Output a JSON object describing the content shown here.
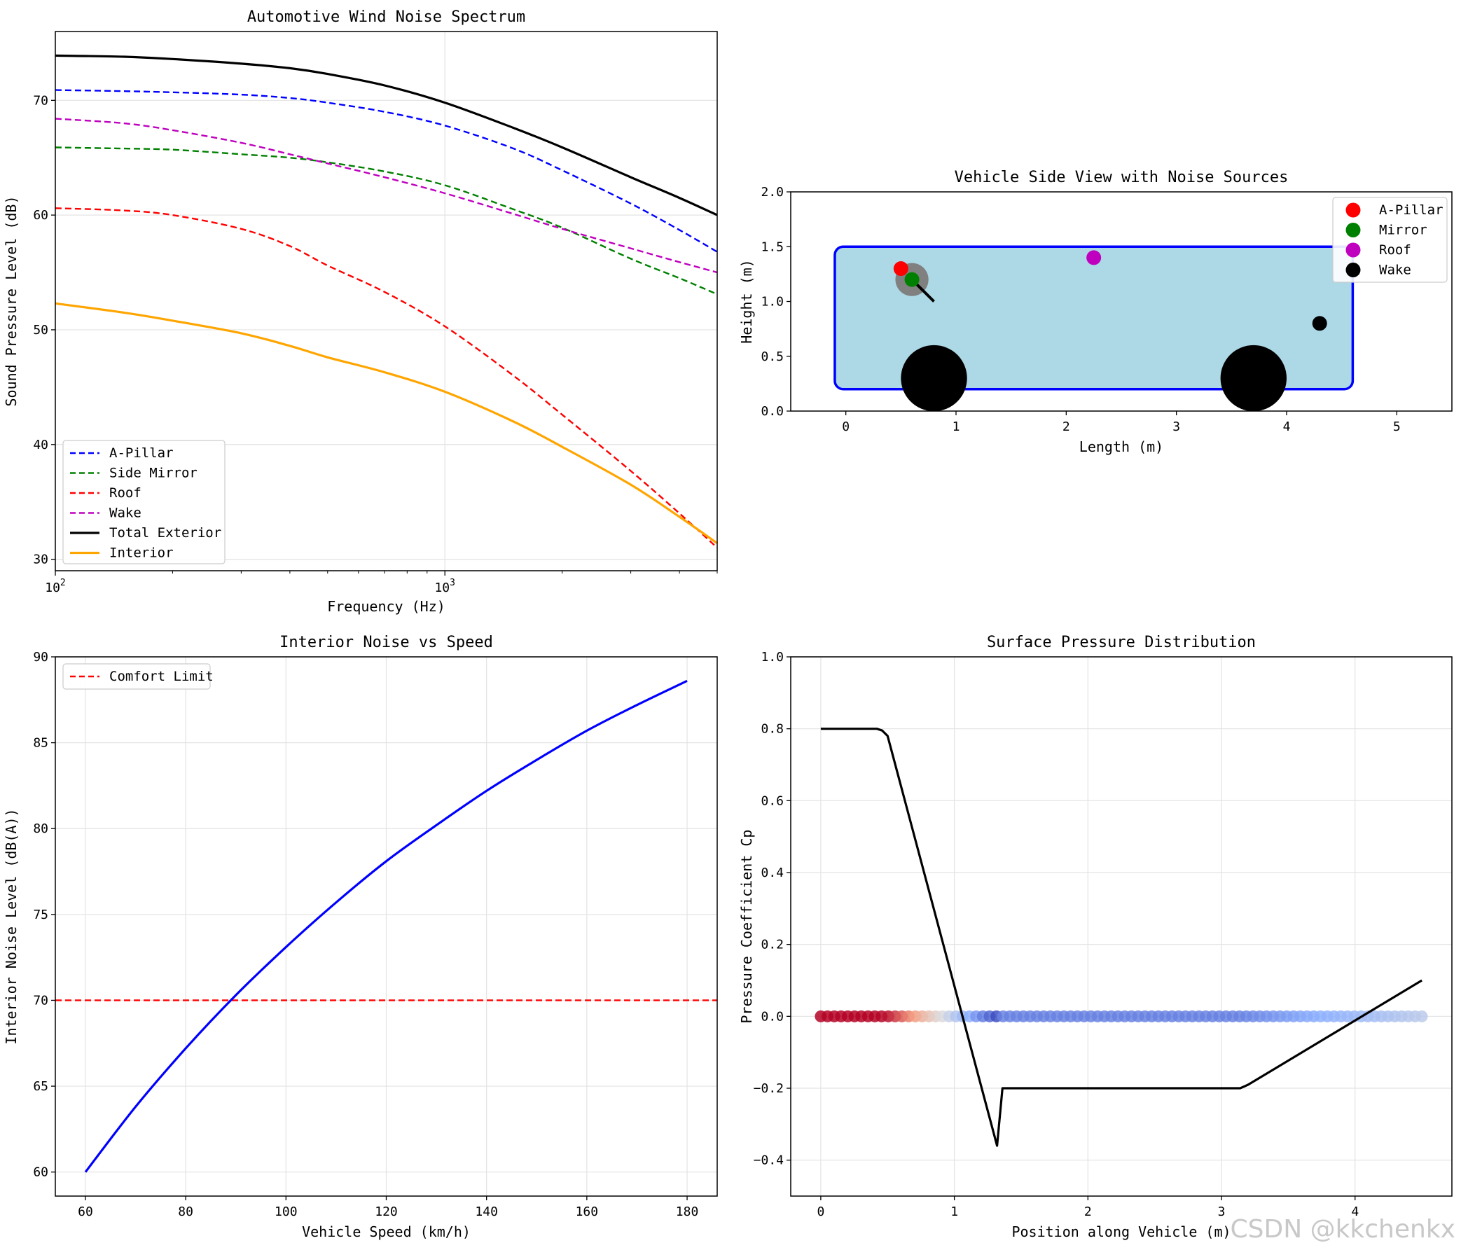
{
  "chart_data": [
    {
      "type": "line",
      "id": "spectrum",
      "title": "Automotive Wind Noise Spectrum",
      "xlabel": "Frequency (Hz)",
      "ylabel": "Sound Pressure Level (dB)",
      "xscale": "log",
      "xlim": [
        100,
        5000
      ],
      "ylim": [
        29,
        76
      ],
      "xticks": [
        {
          "value": 100,
          "base": "10",
          "exp": "2"
        },
        {
          "value": 1000,
          "base": "10",
          "exp": "3"
        }
      ],
      "yticks": [
        30,
        40,
        50,
        60,
        70
      ],
      "legend_position": "lower-left",
      "series": [
        {
          "name": "A-Pillar",
          "color": "#0000ff",
          "dash": true,
          "x": [
            100,
            150,
            200,
            300,
            400,
            500,
            700,
            1000,
            1500,
            2000,
            3000,
            4000,
            5000
          ],
          "y": [
            70.9,
            70.8,
            70.7,
            70.5,
            70.2,
            69.8,
            69.0,
            67.8,
            65.8,
            63.9,
            61.0,
            58.7,
            56.8
          ]
        },
        {
          "name": "Side Mirror",
          "color": "#008000",
          "dash": true,
          "x": [
            100,
            150,
            200,
            300,
            400,
            500,
            700,
            1000,
            1500,
            2000,
            3000,
            4000,
            5000
          ],
          "y": [
            65.9,
            65.8,
            65.7,
            65.3,
            65.0,
            64.6,
            63.8,
            62.6,
            60.5,
            58.9,
            56.2,
            54.5,
            53.1
          ]
        },
        {
          "name": "Roof",
          "color": "#ff0000",
          "dash": true,
          "x": [
            100,
            150,
            200,
            300,
            400,
            500,
            700,
            1000,
            1500,
            2000,
            3000,
            4000,
            5000
          ],
          "y": [
            60.6,
            60.4,
            60.0,
            58.8,
            57.3,
            55.6,
            53.3,
            50.3,
            46.0,
            42.6,
            37.7,
            34.0,
            31.0
          ]
        },
        {
          "name": "Wake",
          "color": "#bf00bf",
          "dash": true,
          "x": [
            100,
            150,
            200,
            300,
            400,
            500,
            700,
            1000,
            1500,
            2000,
            3000,
            4000,
            5000
          ],
          "y": [
            68.4,
            68.0,
            67.4,
            66.3,
            65.3,
            64.5,
            63.3,
            61.9,
            60.1,
            58.8,
            57.1,
            55.9,
            55.0
          ]
        },
        {
          "name": "Total Exterior",
          "color": "#000000",
          "dash": false,
          "x": [
            100,
            150,
            200,
            300,
            400,
            500,
            700,
            1000,
            1500,
            2000,
            3000,
            4000,
            5000
          ],
          "y": [
            73.9,
            73.8,
            73.6,
            73.2,
            72.8,
            72.3,
            71.3,
            69.8,
            67.6,
            65.9,
            63.3,
            61.5,
            60.0
          ]
        },
        {
          "name": "Interior",
          "color": "#ffa500",
          "dash": false,
          "x": [
            100,
            150,
            200,
            300,
            400,
            500,
            700,
            1000,
            1500,
            2000,
            3000,
            4000,
            5000
          ],
          "y": [
            52.3,
            51.5,
            50.8,
            49.7,
            48.6,
            47.6,
            46.3,
            44.6,
            42.0,
            39.8,
            36.5,
            33.7,
            31.4
          ]
        }
      ]
    },
    {
      "type": "scatter",
      "id": "sideview",
      "title": "Vehicle Side View with Noise Sources",
      "xlabel": "Length (m)",
      "ylabel": "Height (m)",
      "xlim": [
        -0.5,
        5.5
      ],
      "ylim": [
        0,
        2
      ],
      "xticks": [
        0,
        1,
        2,
        3,
        4,
        5
      ],
      "yticks": [
        "0.0",
        "0.5",
        "1.0",
        "1.5",
        "2.0"
      ],
      "body": {
        "x0": -0.1,
        "x1": 4.6,
        "y0": 0.2,
        "y1": 1.5,
        "fill": "#add8e6",
        "edge": "#0000ff"
      },
      "wheels": [
        {
          "x": 0.8,
          "y": 0.3,
          "r": 0.3
        },
        {
          "x": 3.7,
          "y": 0.3,
          "r": 0.3
        }
      ],
      "mirror": {
        "x": 0.6,
        "y": 1.2,
        "r": 0.15,
        "arm_x": 0.8,
        "arm_y": 1.0
      },
      "sources": [
        {
          "name": "A-Pillar",
          "color": "#ff0000",
          "x": 0.5,
          "y": 1.3
        },
        {
          "name": "Mirror",
          "color": "#008000",
          "x": 0.6,
          "y": 1.2
        },
        {
          "name": "Roof",
          "color": "#bf00bf",
          "x": 2.25,
          "y": 1.4
        },
        {
          "name": "Wake",
          "color": "#000000",
          "x": 4.3,
          "y": 0.8
        }
      ],
      "legend_position": "upper-right"
    },
    {
      "type": "line",
      "id": "speed",
      "title": "Interior Noise vs Speed",
      "xlabel": "Vehicle Speed (km/h)",
      "ylabel": "Interior Noise Level (dB(A))",
      "xlim": [
        54,
        186
      ],
      "ylim": [
        58.6,
        90
      ],
      "xticks": [
        60,
        80,
        100,
        120,
        140,
        160,
        180
      ],
      "yticks": [
        60,
        65,
        70,
        75,
        80,
        85,
        90
      ],
      "series": [
        {
          "name": "Interior",
          "color": "#0000ff",
          "x": [
            60,
            70,
            80,
            90,
            100,
            110,
            120,
            130,
            140,
            150,
            160,
            170,
            180
          ],
          "y": [
            60.0,
            63.8,
            67.2,
            70.3,
            73.1,
            75.7,
            78.1,
            80.2,
            82.2,
            84.0,
            85.7,
            87.2,
            88.6
          ]
        }
      ],
      "reference": {
        "name": "Comfort Limit",
        "value": 70,
        "color": "#ff0000"
      },
      "legend_position": "upper-left"
    },
    {
      "type": "line",
      "id": "pressure",
      "title": "Surface Pressure Distribution",
      "xlabel": "Position along Vehicle (m)",
      "ylabel": "Pressure Coefficient Cp",
      "xlim": [
        -0.225,
        4.725
      ],
      "ylim": [
        -0.5,
        1.0
      ],
      "xticks": [
        0,
        1,
        2,
        3,
        4
      ],
      "yticks": [
        "−0.4",
        "−0.2",
        "0.0",
        "0.2",
        "0.4",
        "0.6",
        "0.8",
        "1.0"
      ],
      "ytick_values": [
        -0.4,
        -0.2,
        0.0,
        0.2,
        0.4,
        0.6,
        0.8,
        1.0
      ],
      "series": [
        {
          "name": "Cp",
          "color": "#000000",
          "x": [
            0,
            0.42,
            0.46,
            0.5,
            1.32,
            1.36,
            3.14,
            3.2,
            4.5
          ],
          "y": [
            0.8,
            0.8,
            0.795,
            0.78,
            -0.36,
            -0.2,
            -0.2,
            -0.19,
            0.1
          ]
        }
      ],
      "colored_markers": {
        "y": 0.0,
        "x_from": 0.0,
        "x_to": 4.5,
        "count": 90,
        "colormap": "coolwarm"
      }
    }
  ],
  "watermark": "CSDN @kkchenkx"
}
